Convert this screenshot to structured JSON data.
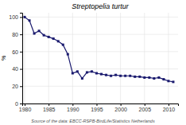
{
  "chart_data": {
    "type": "line",
    "title": "Streptopelia turtur",
    "ylabel": "%",
    "source": "Source of the data: EBCC-RSPB-BirdLife/Statistics Netherlands",
    "x": [
      1980,
      1981,
      1982,
      1983,
      1984,
      1985,
      1986,
      1987,
      1988,
      1989,
      1990,
      1991,
      1992,
      1993,
      1994,
      1995,
      1996,
      1997,
      1998,
      1999,
      2000,
      2001,
      2002,
      2003,
      2004,
      2005,
      2006,
      2007,
      2008,
      2009,
      2010,
      2011
    ],
    "values": [
      100,
      96,
      81,
      84,
      79,
      77,
      75,
      72,
      68,
      57,
      35,
      37,
      29,
      36,
      37,
      35,
      34,
      33,
      32,
      33,
      32,
      32,
      32,
      31,
      31,
      30,
      30,
      29,
      30,
      28,
      26,
      25
    ],
    "color": "#1a1a6e",
    "marker": "square",
    "xlim": [
      1979.5,
      2012
    ],
    "xticks": [
      1980,
      1985,
      1990,
      1995,
      2000,
      2005,
      2010
    ],
    "ylim": [
      0,
      105
    ],
    "yticks": [
      0,
      20,
      40,
      60,
      80,
      100
    ],
    "grid": true
  }
}
